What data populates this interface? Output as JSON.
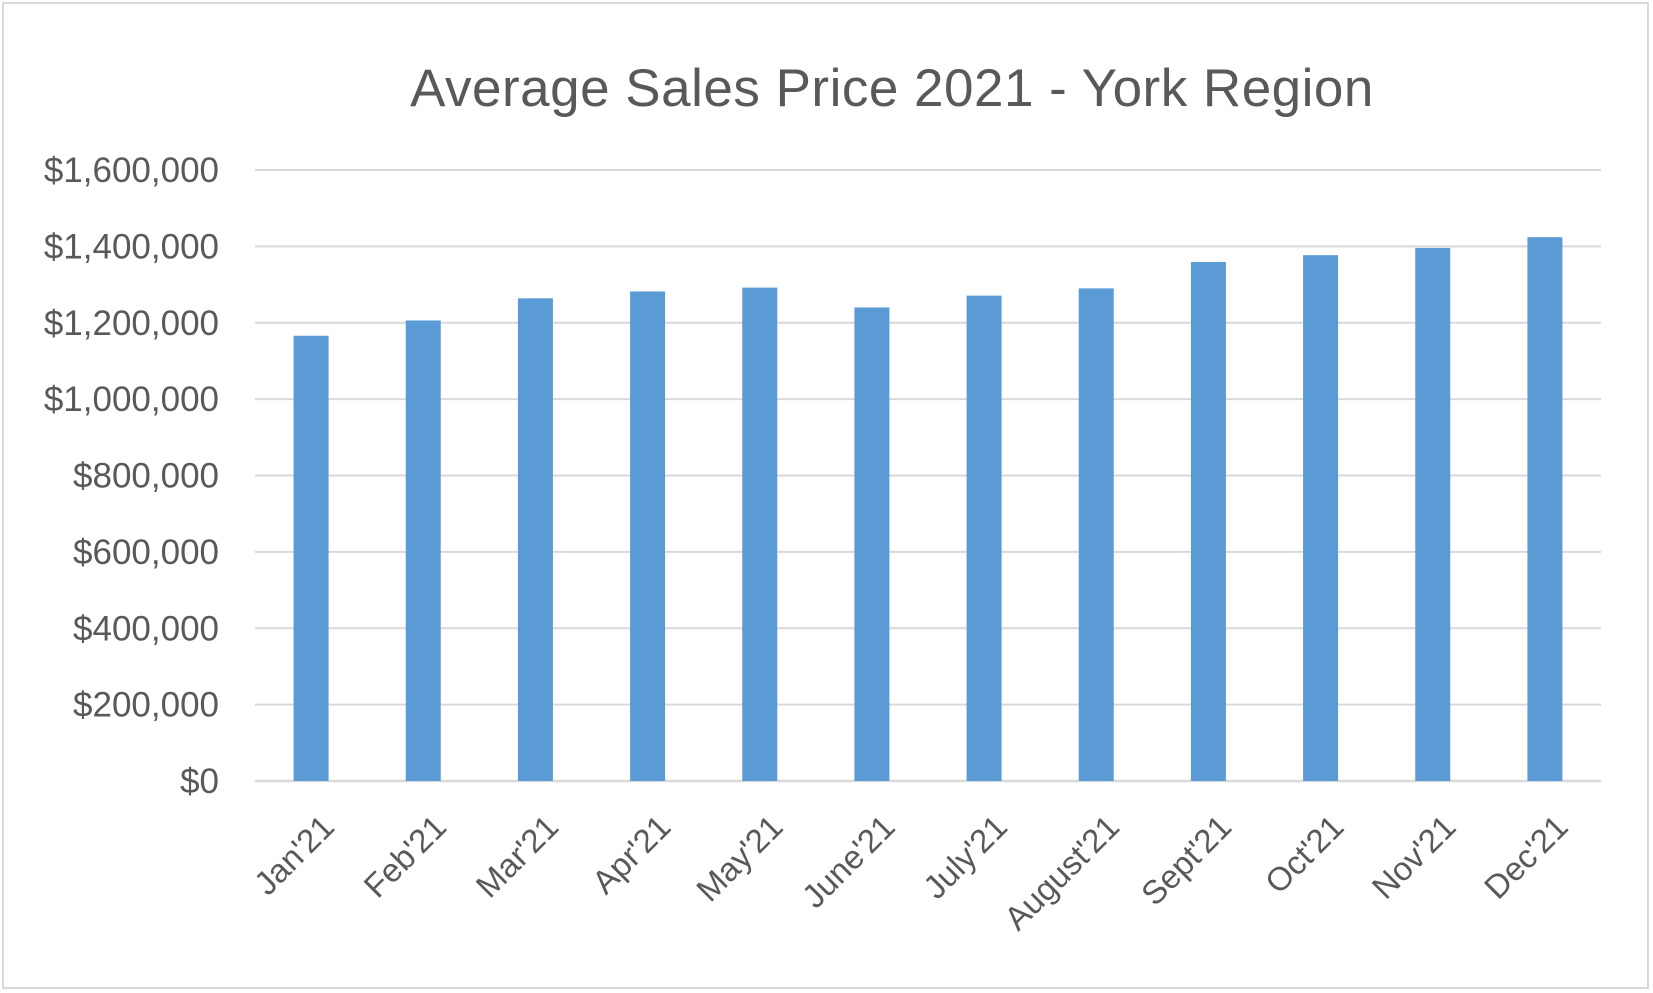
{
  "chart_data": {
    "type": "bar",
    "title": "Average Sales Price 2021 - York Region",
    "xlabel": "",
    "ylabel": "",
    "categories": [
      "Jan'21",
      "Feb'21",
      "Mar'21",
      "Apr'21",
      "May'21",
      "June'21",
      "July'21",
      "August'21",
      "Sept'21",
      "Oct'21",
      "Nov'21",
      "Dec'21"
    ],
    "values": [
      1166000,
      1206000,
      1264000,
      1282000,
      1292000,
      1240000,
      1271000,
      1290000,
      1359000,
      1377000,
      1396000,
      1424000
    ],
    "ylim": [
      0,
      1600000
    ],
    "yticks": [
      0,
      200000,
      400000,
      600000,
      800000,
      1000000,
      1200000,
      1400000,
      1600000
    ],
    "ytick_labels": [
      "$0",
      "$200,000",
      "$400,000",
      "$600,000",
      "$800,000",
      "$1,000,000",
      "$1,200,000",
      "$1,400,000",
      "$1,600,000"
    ],
    "grid": true,
    "legend": "none",
    "bar_color": "#5b9bd5",
    "grid_color": "#d9d9d9",
    "text_color": "#595959"
  }
}
